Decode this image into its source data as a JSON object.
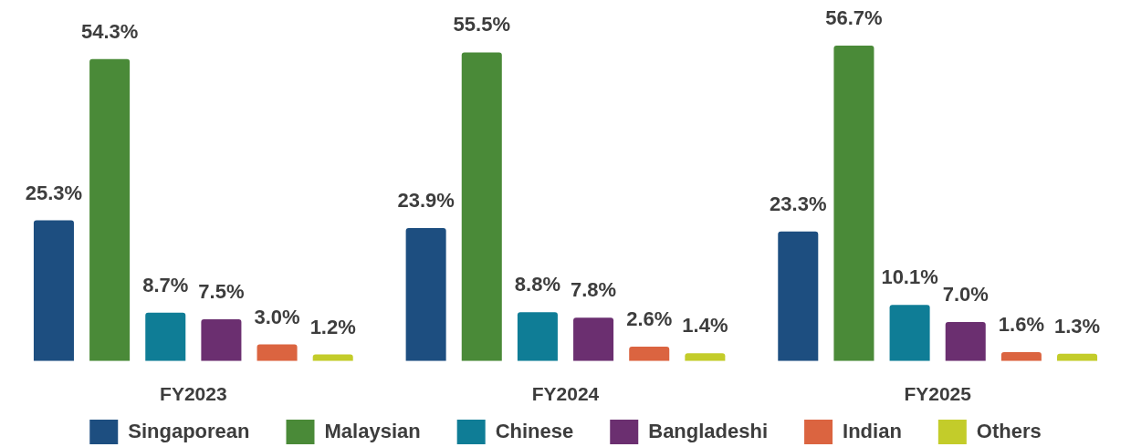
{
  "chart_data": {
    "type": "bar",
    "categories": [
      "FY2023",
      "FY2024",
      "FY2025"
    ],
    "series": [
      {
        "name": "Singaporean",
        "color": "#1d4e80",
        "values": [
          25.3,
          23.9,
          23.3
        ],
        "value_labels": [
          "25.3%",
          "23.9%",
          "23.3%"
        ]
      },
      {
        "name": "Malaysian",
        "color": "#4a8a38",
        "values": [
          54.3,
          55.5,
          56.7
        ],
        "value_labels": [
          "54.3%",
          "55.5%",
          "56.7%"
        ]
      },
      {
        "name": "Chinese",
        "color": "#0f7d96",
        "values": [
          8.7,
          8.8,
          10.1
        ],
        "value_labels": [
          "8.7%",
          "8.8%",
          "10.1%"
        ]
      },
      {
        "name": "Bangladeshi",
        "color": "#6b2f70",
        "values": [
          7.5,
          7.8,
          7.0
        ],
        "value_labels": [
          "7.5%",
          "7.8%",
          "7.0%"
        ]
      },
      {
        "name": "Indian",
        "color": "#db6440",
        "values": [
          3.0,
          2.6,
          1.6
        ],
        "value_labels": [
          "3.0%",
          "2.6%",
          "1.6%"
        ]
      },
      {
        "name": "Others",
        "color": "#c3cc2a",
        "values": [
          1.2,
          1.4,
          1.3
        ],
        "value_labels": [
          "1.2%",
          "1.4%",
          "1.3%"
        ]
      }
    ],
    "legend": "bottom"
  }
}
